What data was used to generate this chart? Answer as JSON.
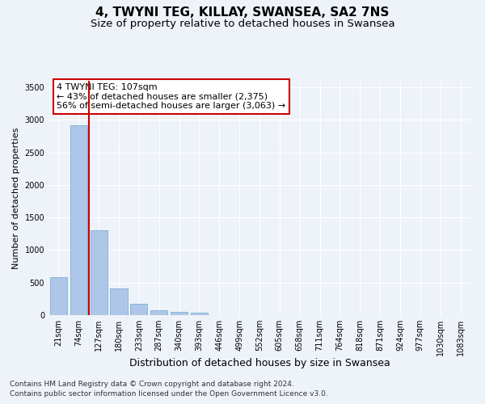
{
  "title": "4, TWYNI TEG, KILLAY, SWANSEA, SA2 7NS",
  "subtitle": "Size of property relative to detached houses in Swansea",
  "xlabel": "Distribution of detached houses by size in Swansea",
  "ylabel": "Number of detached properties",
  "categories": [
    "21sqm",
    "74sqm",
    "127sqm",
    "180sqm",
    "233sqm",
    "287sqm",
    "340sqm",
    "393sqm",
    "446sqm",
    "499sqm",
    "552sqm",
    "605sqm",
    "658sqm",
    "711sqm",
    "764sqm",
    "818sqm",
    "871sqm",
    "924sqm",
    "977sqm",
    "1030sqm",
    "1083sqm"
  ],
  "bar_values": [
    580,
    2920,
    1300,
    415,
    170,
    80,
    50,
    35,
    0,
    0,
    0,
    0,
    0,
    0,
    0,
    0,
    0,
    0,
    0,
    0,
    0
  ],
  "bar_color": "#aec6e8",
  "bar_edge_color": "#7aafd4",
  "vline_color": "#cc0000",
  "annotation_text": "4 TWYNI TEG: 107sqm\n← 43% of detached houses are smaller (2,375)\n56% of semi-detached houses are larger (3,063) →",
  "annotation_box_color": "#ffffff",
  "annotation_box_edge": "#cc0000",
  "ylim": [
    0,
    3600
  ],
  "yticks": [
    0,
    500,
    1000,
    1500,
    2000,
    2500,
    3000,
    3500
  ],
  "background_color": "#eef2f9",
  "grid_color": "#ffffff",
  "footer_line1": "Contains HM Land Registry data © Crown copyright and database right 2024.",
  "footer_line2": "Contains public sector information licensed under the Open Government Licence v3.0.",
  "title_fontsize": 11,
  "subtitle_fontsize": 9.5,
  "xlabel_fontsize": 9,
  "ylabel_fontsize": 8,
  "tick_fontsize": 7,
  "annotation_fontsize": 8,
  "footer_fontsize": 6.5
}
